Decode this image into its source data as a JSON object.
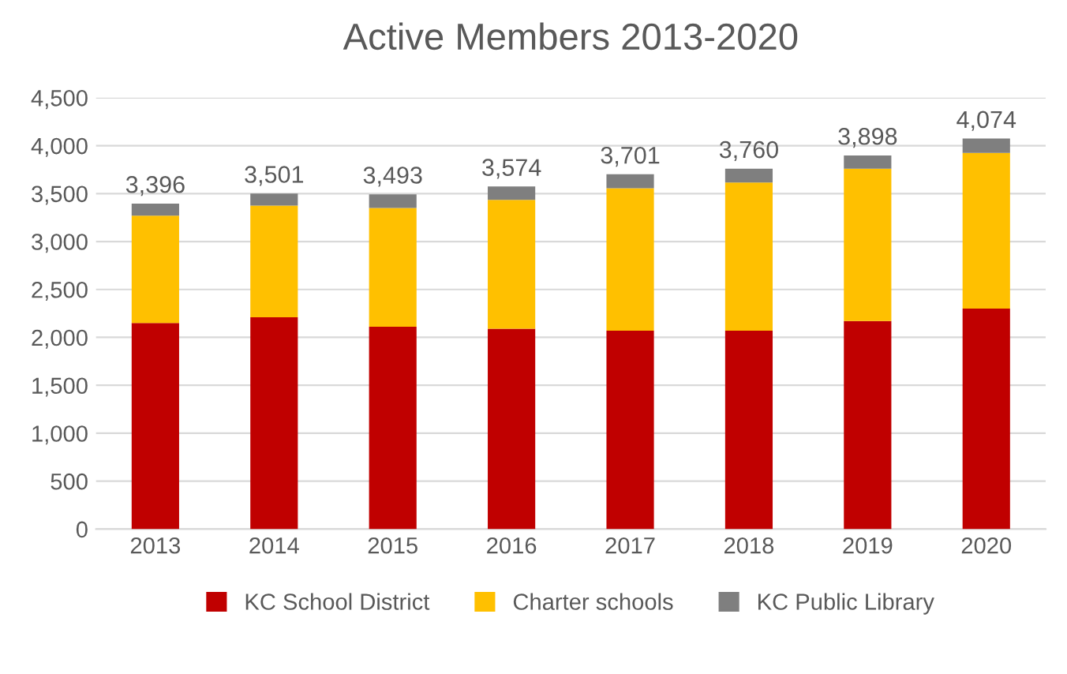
{
  "chart_data": {
    "type": "bar",
    "title": "Active Members 2013-2020",
    "stacked": true,
    "categories": [
      "2013",
      "2014",
      "2015",
      "2016",
      "2017",
      "2018",
      "2019",
      "2020"
    ],
    "series": [
      {
        "name": "KC School District",
        "color": "#c00000",
        "values": [
          2150,
          2210,
          2110,
          2090,
          2070,
          2070,
          2170,
          2300
        ]
      },
      {
        "name": "Charter schools",
        "color": "#ffc000",
        "values": [
          1120,
          1165,
          1240,
          1345,
          1485,
          1545,
          1590,
          1625
        ]
      },
      {
        "name": "KC Public Library",
        "color": "#7f7f7f",
        "values": [
          126,
          126,
          143,
          139,
          146,
          145,
          138,
          149
        ]
      }
    ],
    "totals": [
      "3,396",
      "3,501",
      "3,493",
      "3,574",
      "3,701",
      "3,760",
      "3,898",
      "4,074"
    ],
    "ylim": [
      0,
      4500
    ],
    "yticks": [
      {
        "value": 0,
        "label": "0"
      },
      {
        "value": 500,
        "label": "500"
      },
      {
        "value": 1000,
        "label": "1,000"
      },
      {
        "value": 1500,
        "label": "1,500"
      },
      {
        "value": 2000,
        "label": "2,000"
      },
      {
        "value": 2500,
        "label": "2,500"
      },
      {
        "value": 3000,
        "label": "3,000"
      },
      {
        "value": 3500,
        "label": "3,500"
      },
      {
        "value": 4000,
        "label": "4,000"
      },
      {
        "value": 4500,
        "label": "4,500"
      }
    ],
    "grid": "y",
    "legend": "bottom"
  }
}
